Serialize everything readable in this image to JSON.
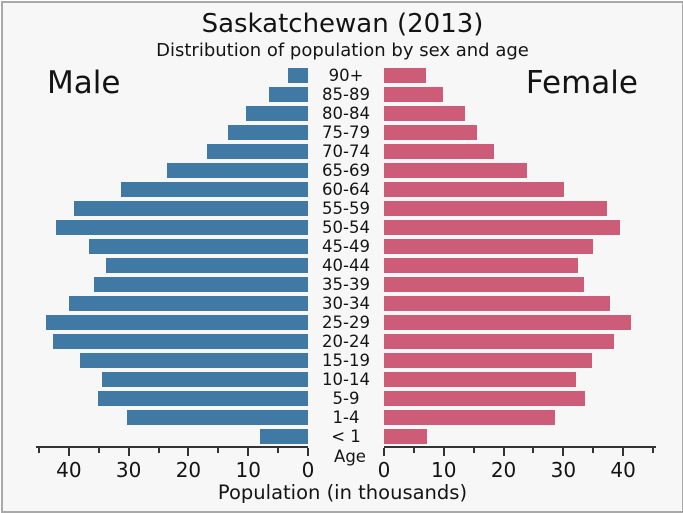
{
  "frame": {
    "background_color": "#f7f7f7",
    "border_color": "#a9a9a9"
  },
  "chart_data": {
    "type": "bar",
    "variant": "population-pyramid",
    "title": "Saskatchewan (2013)",
    "subtitle": "Distribution of population by sex and age",
    "left_side_label": "Male",
    "right_side_label": "Female",
    "age_axis_label": "Age",
    "xlabel": "Population (in thousands)",
    "axis_color": "#333333",
    "grid": "off",
    "xlim": [
      0,
      45.5
    ],
    "major_ticks": [
      0,
      10,
      20,
      30,
      40
    ],
    "minor_ticks": [
      5,
      15,
      25,
      35,
      45
    ],
    "categories": [
      "90+",
      "85-89",
      "80-84",
      "75-79",
      "70-74",
      "65-69",
      "60-64",
      "55-59",
      "50-54",
      "45-49",
      "40-44",
      "35-39",
      "30-34",
      "25-29",
      "20-24",
      "15-19",
      "10-14",
      "5-9",
      "1-4",
      "< 1"
    ],
    "series": [
      {
        "name": "Male",
        "side": "left",
        "color": "#4079a3",
        "values": [
          3.3,
          6.6,
          10.4,
          13.4,
          16.9,
          23.6,
          31.3,
          39.1,
          42.2,
          36.6,
          33.8,
          35.8,
          40.0,
          43.8,
          42.7,
          38.1,
          34.5,
          35.2,
          30.3,
          8.0
        ]
      },
      {
        "name": "Female",
        "side": "right",
        "color": "#cc5c78",
        "values": [
          7.1,
          9.9,
          13.6,
          15.6,
          18.4,
          23.9,
          30.1,
          37.3,
          39.4,
          35.0,
          32.5,
          33.5,
          37.8,
          41.4,
          38.4,
          34.8,
          32.1,
          33.6,
          28.6,
          7.2
        ]
      }
    ]
  }
}
